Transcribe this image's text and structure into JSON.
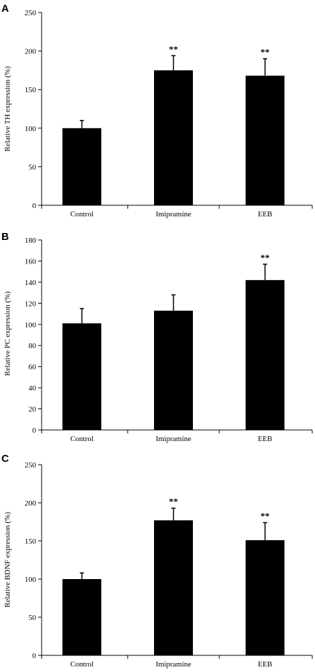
{
  "chart_data": [
    {
      "panel": "A",
      "type": "bar",
      "ylabel": "Relative TH expression (%)",
      "categories": [
        "Control",
        "Imipramine",
        "EEB"
      ],
      "values": [
        100,
        175,
        168
      ],
      "errors": [
        10,
        19,
        22
      ],
      "significance": [
        "",
        "**",
        "**"
      ],
      "ylim": [
        0,
        250
      ],
      "yticks": [
        0,
        50,
        100,
        150,
        200,
        250
      ],
      "bar_color": "#000000",
      "grid": false
    },
    {
      "panel": "B",
      "type": "bar",
      "ylabel": "Relative PC expression (%)",
      "categories": [
        "Control",
        "Imipramine",
        "EEB"
      ],
      "values": [
        101,
        113,
        142
      ],
      "errors": [
        14,
        15,
        15
      ],
      "significance": [
        "",
        "",
        "**"
      ],
      "ylim": [
        0,
        180
      ],
      "yticks": [
        0,
        20,
        40,
        60,
        80,
        100,
        120,
        140,
        160,
        180
      ],
      "bar_color": "#000000",
      "grid": false
    },
    {
      "panel": "C",
      "type": "bar",
      "ylabel": "Relative BDNF expression (%)",
      "categories": [
        "Control",
        "Imipramine",
        "EEB"
      ],
      "values": [
        100,
        177,
        151
      ],
      "errors": [
        8,
        16,
        23
      ],
      "significance": [
        "",
        "**",
        "**"
      ],
      "ylim": [
        0,
        250
      ],
      "yticks": [
        0,
        50,
        100,
        150,
        200,
        250
      ],
      "bar_color": "#000000",
      "grid": false
    }
  ]
}
